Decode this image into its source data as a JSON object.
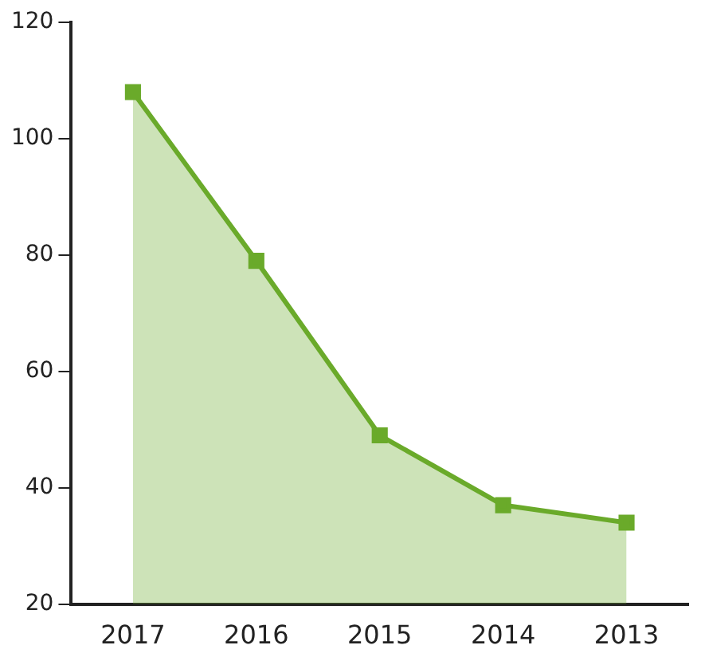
{
  "chart_data": {
    "type": "area",
    "categories": [
      "2017",
      "2016",
      "2015",
      "2014",
      "2013"
    ],
    "series": [
      {
        "color": "#6aaa2a",
        "values": [
          108,
          79,
          49,
          37,
          34
        ]
      }
    ],
    "ylim": [
      20,
      120
    ],
    "yticks": [
      20,
      40,
      60,
      80,
      100,
      120
    ],
    "grid": false,
    "legend": false,
    "marker": "square"
  }
}
